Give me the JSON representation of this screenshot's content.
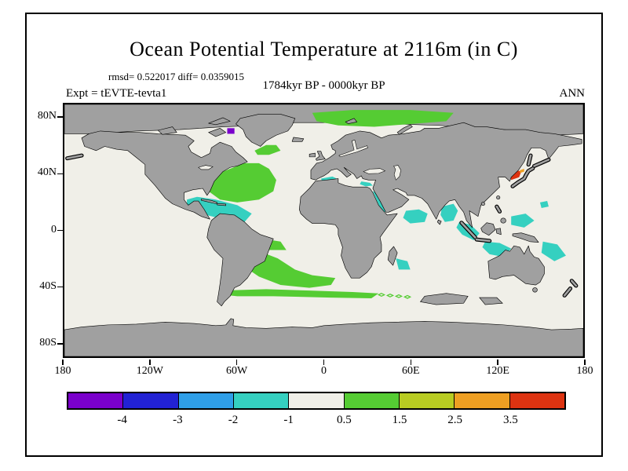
{
  "map_colors": {
    "land": "#a0a0a0",
    "ocean": "#f0efe8",
    "coastline": "#000000",
    "frame": "#000000"
  },
  "chart_data": {
    "type": "heatmap",
    "title": "Ocean Potential Temperature at 2116m (in C)",
    "stats_line": "rmsd= 0.522017  diff= 0.0359015",
    "period": "1784kyr BP - 0000kyr BP",
    "experiment": "Expt = tEVTE-tevta1",
    "season": "ANN",
    "units": "C",
    "projection": "equirectangular",
    "lon_range": [
      -180,
      180
    ],
    "lat_range": [
      -90,
      90
    ],
    "grid": false,
    "legend_position": "bottom-colorbar",
    "axes": {
      "lat_ticks": [
        {
          "label": "80N",
          "lat": 80
        },
        {
          "label": "40N",
          "lat": 40
        },
        {
          "label": "0",
          "lat": 0
        },
        {
          "label": "40S",
          "lat": -40
        },
        {
          "label": "80S",
          "lat": -80
        }
      ],
      "lon_ticks": [
        {
          "label": "180",
          "lon": -180
        },
        {
          "label": "120W",
          "lon": -120
        },
        {
          "label": "60W",
          "lon": -60
        },
        {
          "label": "0",
          "lon": 0
        },
        {
          "label": "60E",
          "lon": 60
        },
        {
          "label": "120E",
          "lon": 120
        },
        {
          "label": "180",
          "lon": 180
        }
      ]
    },
    "levels": [
      -4,
      -3,
      -2,
      -1,
      0.5,
      1.5,
      2.5,
      3.5
    ],
    "level_colors": [
      "#7a00cc",
      "#2222d4",
      "#2f9fe8",
      "#35d0c0",
      "#f0efe8",
      "#55cc33",
      "#b8cc22",
      "#ee9f22",
      "#dd3311"
    ],
    "anomaly_regions": [
      {
        "name": "arctic-barents-kara-warm",
        "value_range": "0.5 to 1.5",
        "color": "#55cc33",
        "points": [
          [
            -8,
            84
          ],
          [
            20,
            86
          ],
          [
            60,
            86
          ],
          [
            90,
            84
          ],
          [
            85,
            78
          ],
          [
            60,
            76
          ],
          [
            35,
            74
          ],
          [
            10,
            75
          ],
          [
            -5,
            78
          ]
        ]
      },
      {
        "name": "baffin-bay-cold-spot",
        "value_range": "< -4",
        "color": "#7a00cc",
        "points": [
          [
            -67,
            73
          ],
          [
            -62,
            73
          ],
          [
            -62,
            69
          ],
          [
            -67,
            69
          ]
        ]
      },
      {
        "name": "south-greenland-warm",
        "value_range": "0.5 to 1.5",
        "color": "#55cc33",
        "points": [
          [
            -48,
            57
          ],
          [
            -40,
            61
          ],
          [
            -33,
            61
          ],
          [
            -30,
            57
          ],
          [
            -38,
            54
          ],
          [
            -46,
            54
          ]
        ]
      },
      {
        "name": "north-atlantic-warm",
        "value_range": "0.5 to 1.5",
        "color": "#55cc33",
        "points": [
          [
            -80,
            28
          ],
          [
            -75,
            40
          ],
          [
            -65,
            44
          ],
          [
            -55,
            48
          ],
          [
            -45,
            48
          ],
          [
            -38,
            44
          ],
          [
            -33,
            36
          ],
          [
            -35,
            28
          ],
          [
            -45,
            22
          ],
          [
            -60,
            20
          ],
          [
            -72,
            22
          ]
        ]
      },
      {
        "name": "tropical-atlantic-warm",
        "value_range": "0.5 to 1.5",
        "color": "#55cc33",
        "points": [
          [
            -42,
            -6
          ],
          [
            -30,
            -8
          ],
          [
            -26,
            -14
          ],
          [
            -38,
            -14
          ]
        ]
      },
      {
        "name": "caribbean-gulf-cold",
        "value_range": "-2 to -1",
        "color": "#35d0c0",
        "points": [
          [
            -95,
            22
          ],
          [
            -88,
            24
          ],
          [
            -75,
            22
          ],
          [
            -60,
            18
          ],
          [
            -50,
            12
          ],
          [
            -55,
            6
          ],
          [
            -70,
            8
          ],
          [
            -85,
            12
          ],
          [
            -95,
            17
          ]
        ]
      },
      {
        "name": "west-mediterranean-cold",
        "value_range": "-2 to -1",
        "color": "#35d0c0",
        "points": [
          [
            -2,
            37
          ],
          [
            6,
            38.5
          ],
          [
            9,
            37
          ],
          [
            5,
            35
          ],
          [
            -1,
            35
          ]
        ]
      },
      {
        "name": "east-mediterranean-cold",
        "value_range": "-2 to -1",
        "color": "#35d0c0",
        "points": [
          [
            26,
            35
          ],
          [
            32,
            34
          ],
          [
            34,
            32
          ],
          [
            29,
            31.5
          ],
          [
            25,
            33
          ]
        ]
      },
      {
        "name": "red-sea-cold",
        "value_range": "-2 to -1",
        "color": "#35d0c0",
        "points": [
          [
            34,
            28
          ],
          [
            36.5,
            27
          ],
          [
            43,
            13.5
          ],
          [
            40.5,
            12.5
          ]
        ]
      },
      {
        "name": "arabian-sea-cold",
        "value_range": "-2 to -1",
        "color": "#35d0c0",
        "points": [
          [
            57,
            14
          ],
          [
            66,
            15
          ],
          [
            72,
            12
          ],
          [
            70,
            6
          ],
          [
            60,
            5
          ],
          [
            55,
            9
          ]
        ]
      },
      {
        "name": "bay-of-bengal-cold",
        "value_range": "-2 to -1",
        "color": "#35d0c0",
        "points": [
          [
            82,
            17
          ],
          [
            90,
            19
          ],
          [
            93,
            14
          ],
          [
            90,
            7
          ],
          [
            84,
            6
          ],
          [
            81,
            11
          ]
        ]
      },
      {
        "name": "indonesia-cold",
        "value_range": "-2 to -1",
        "color": "#35d0c0",
        "points": [
          [
            94,
            6
          ],
          [
            102,
            4
          ],
          [
            108,
            -2
          ],
          [
            104,
            -7
          ],
          [
            96,
            -3
          ],
          [
            92,
            2
          ]
        ]
      },
      {
        "name": "timor-nw-australia-cold",
        "value_range": "-2 to -1",
        "color": "#35d0c0",
        "points": [
          [
            112,
            -8
          ],
          [
            122,
            -9
          ],
          [
            130,
            -13
          ],
          [
            125,
            -19
          ],
          [
            115,
            -17
          ],
          [
            110,
            -12
          ]
        ]
      },
      {
        "name": "philippine-sea-cold",
        "value_range": "-2 to -1",
        "color": "#35d0c0",
        "points": [
          [
            130,
            10
          ],
          [
            140,
            12
          ],
          [
            146,
            7
          ],
          [
            139,
            2
          ],
          [
            130,
            4
          ]
        ]
      },
      {
        "name": "coral-sea-cold",
        "value_range": "-2 to -1",
        "color": "#35d0c0",
        "points": [
          [
            152,
            -8
          ],
          [
            162,
            -10
          ],
          [
            168,
            -18
          ],
          [
            160,
            -22
          ],
          [
            151,
            -16
          ]
        ]
      },
      {
        "name": "se-madagascar-cold",
        "value_range": "-2 to -1",
        "color": "#35d0c0",
        "points": [
          [
            50,
            -20
          ],
          [
            58,
            -22
          ],
          [
            60,
            -28
          ],
          [
            52,
            -28
          ]
        ]
      },
      {
        "name": "nw-pacific-cold-speck",
        "value_range": "-2 to -1",
        "color": "#35d0c0",
        "points": [
          [
            150,
            20
          ],
          [
            155,
            21
          ],
          [
            156,
            17
          ],
          [
            151,
            16
          ]
        ]
      },
      {
        "name": "sea-of-japan-warm-core",
        "value_range": "> 3.5",
        "color": "#dd3311",
        "points": [
          [
            130,
            36
          ],
          [
            135.5,
            38
          ],
          [
            137,
            42
          ],
          [
            132.5,
            43.5
          ],
          [
            129,
            40
          ]
        ]
      },
      {
        "name": "sea-of-japan-warm-fringe",
        "value_range": "2.5 to 3.5",
        "color": "#ee9f22",
        "points": [
          [
            136,
            41
          ],
          [
            139,
            42
          ],
          [
            139,
            44
          ],
          [
            136,
            43
          ]
        ]
      },
      {
        "name": "south-atlantic-warm",
        "value_range": "0.5 to 1.5",
        "color": "#55cc33",
        "points": [
          [
            -55,
            -20
          ],
          [
            -42,
            -16
          ],
          [
            -32,
            -20
          ],
          [
            -20,
            -28
          ],
          [
            -8,
            -32
          ],
          [
            8,
            -34
          ],
          [
            5,
            -39
          ],
          [
            -10,
            -41
          ],
          [
            -30,
            -39
          ],
          [
            -45,
            -33
          ],
          [
            -55,
            -26
          ]
        ]
      },
      {
        "name": "southern-ocean-warm-band",
        "value_range": "0.5 to 1.5",
        "color": "#55cc33",
        "points": [
          [
            -70,
            -43
          ],
          [
            -40,
            -42
          ],
          [
            -10,
            -43
          ],
          [
            20,
            -44
          ],
          [
            38,
            -45
          ],
          [
            33,
            -48.5
          ],
          [
            5,
            -48
          ],
          [
            -35,
            -47
          ],
          [
            -60,
            -47
          ],
          [
            -70,
            -46
          ]
        ]
      },
      {
        "name": "southern-ocean-warm-hatch-1",
        "value_range": "0.5 to 1.5",
        "color": "#55cc33",
        "style": "outline",
        "points": [
          [
            40,
            -45
          ],
          [
            42,
            -46
          ],
          [
            40,
            -47
          ],
          [
            38,
            -46
          ]
        ]
      },
      {
        "name": "southern-ocean-warm-hatch-2",
        "value_range": "0.5 to 1.5",
        "color": "#55cc33",
        "style": "outline",
        "points": [
          [
            46,
            -45.5
          ],
          [
            48,
            -46.5
          ],
          [
            46,
            -47.5
          ],
          [
            44,
            -46.5
          ]
        ]
      },
      {
        "name": "southern-ocean-warm-hatch-3",
        "value_range": "0.5 to 1.5",
        "color": "#55cc33",
        "style": "outline",
        "points": [
          [
            52,
            -46
          ],
          [
            54,
            -47
          ],
          [
            52,
            -48
          ],
          [
            50,
            -47
          ]
        ]
      },
      {
        "name": "southern-ocean-warm-hatch-4",
        "value_range": "0.5 to 1.5",
        "color": "#55cc33",
        "style": "outline",
        "points": [
          [
            58,
            -46.5
          ],
          [
            60,
            -47.5
          ],
          [
            58,
            -48.5
          ],
          [
            56,
            -47.5
          ]
        ]
      }
    ],
    "masked_regions": [
      {
        "name": "arctic-ice-mask",
        "points": [
          [
            -180,
            90
          ],
          [
            180,
            90
          ],
          [
            180,
            69
          ],
          [
            160,
            68
          ],
          [
            140,
            71
          ],
          [
            110,
            73
          ],
          [
            80,
            75
          ],
          [
            50,
            76
          ],
          [
            20,
            76
          ],
          [
            0,
            77
          ],
          [
            -20,
            77
          ],
          [
            -45,
            75
          ],
          [
            -70,
            74
          ],
          [
            -100,
            72
          ],
          [
            -130,
            71
          ],
          [
            -160,
            69
          ],
          [
            -180,
            69
          ]
        ]
      },
      {
        "name": "kerguelen-plateau-mask",
        "points": [
          [
            70,
            -47
          ],
          [
            85,
            -45
          ],
          [
            100,
            -47
          ],
          [
            97,
            -52
          ],
          [
            78,
            -53
          ],
          [
            67,
            -51
          ]
        ]
      },
      {
        "name": "south-of-australia-mask",
        "points": [
          [
            108,
            -48
          ],
          [
            120,
            -48
          ],
          [
            124,
            -52
          ],
          [
            112,
            -53
          ]
        ]
      }
    ]
  }
}
